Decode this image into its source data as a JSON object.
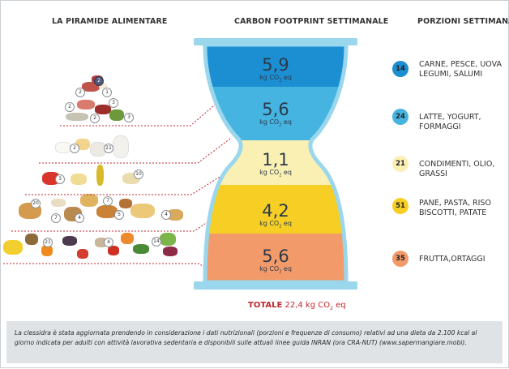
{
  "headers": {
    "pyramid": "LA PIRAMIDE ALIMENTARE",
    "carbon": "CARBON FOOTPRINT SETTIMANALE",
    "portions": "PORZIONI SETTIMANALI"
  },
  "hourglass": {
    "unit_prefix": "kg CO",
    "unit_sub": "2",
    "unit_suffix": " eq",
    "levels": [
      {
        "value": "5,9",
        "color": "#1b8fd2"
      },
      {
        "value": "5,6",
        "color": "#46b4e0"
      },
      {
        "value": "1,1",
        "color": "#fbf0b4"
      },
      {
        "value": "4,2",
        "color": "#f7cf24"
      },
      {
        "value": "5,6",
        "color": "#f39a6a"
      }
    ],
    "frame_color": "#9ad6ec"
  },
  "total": {
    "label": "TOTALE",
    "value": "22,4",
    "unit_prefix": "kg CO",
    "unit_sub": "2",
    "unit_suffix": " eq"
  },
  "portions": [
    {
      "count": "14",
      "label": "CARNE, PESCE, UOVA LEGUMI, SALUMI",
      "color": "#1b8fd2"
    },
    {
      "count": "24",
      "label": "LATTE, YOGURT, FORMAGGI",
      "color": "#46b4e0"
    },
    {
      "count": "21",
      "label": "CONDIMENTI, OLIO, GRASSI",
      "color": "#fbf0b4"
    },
    {
      "count": "51",
      "label": "PANE, PASTA, RISO BISCOTTI, PATATE",
      "color": "#f7cf24"
    },
    {
      "count": "35",
      "label": "FRUTTA,ORTAGGI",
      "color": "#f39a6a"
    }
  ],
  "pyramid_badges": [
    "2",
    "2",
    "1",
    "3",
    "3",
    "2",
    "2",
    "2",
    "21",
    "3",
    "10",
    "20",
    "7",
    "4",
    "4",
    "7",
    "5",
    "21",
    "4",
    "14"
  ],
  "caption": "La clessidra è stata aggiornata prendendo in considerazione i dati nutrizionali (porzioni e frequenze di consumo) relativi ad una dieta da 2.100 kcal al giorno indicata per adulti con attività lavorativa sedentaria e disponibili sulle attuali linee guida INRAN (ora CRA-NUT) (www.sapermangiare.mobi)."
}
